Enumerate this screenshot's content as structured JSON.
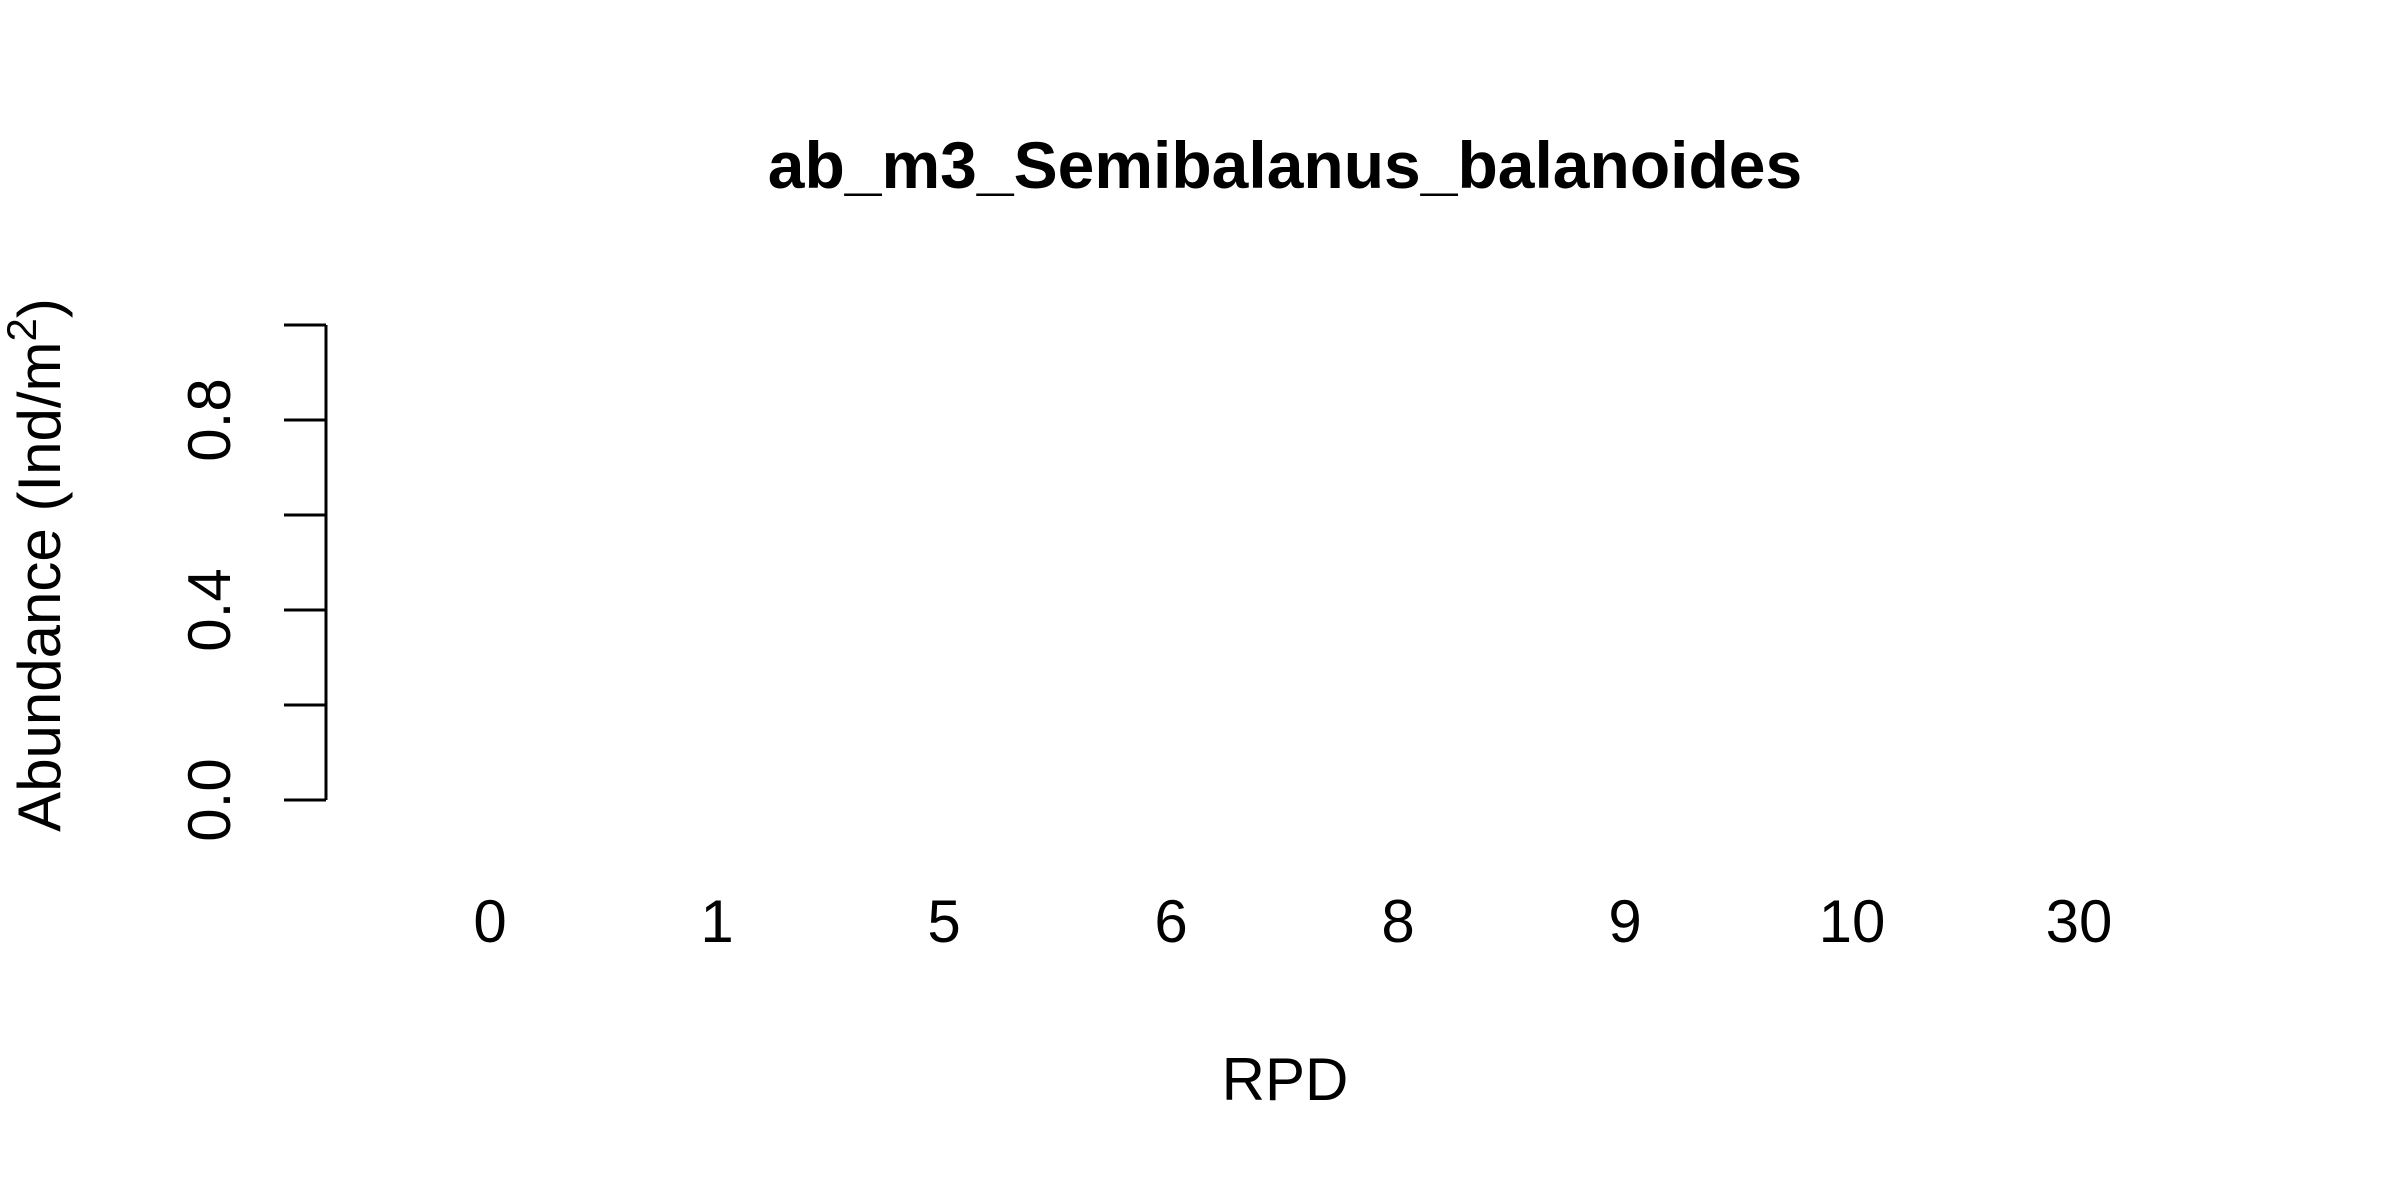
{
  "chart_data": {
    "type": "bar",
    "title": "ab_m3_Semibalanus_balanoides",
    "xlabel": "RPD",
    "ylabel": "Abundance (Ind/m",
    "ylabel_superscript": "2",
    "ylabel_close": ")",
    "categories": [
      "0",
      "1",
      "5",
      "6",
      "8",
      "9",
      "10",
      "30"
    ],
    "values": [
      0,
      0,
      0,
      0,
      0,
      0,
      0,
      0
    ],
    "ylim": [
      0,
      1
    ],
    "yticks": [
      "0.0",
      "0.4",
      "0.8"
    ],
    "grid": false,
    "legend": "none"
  }
}
